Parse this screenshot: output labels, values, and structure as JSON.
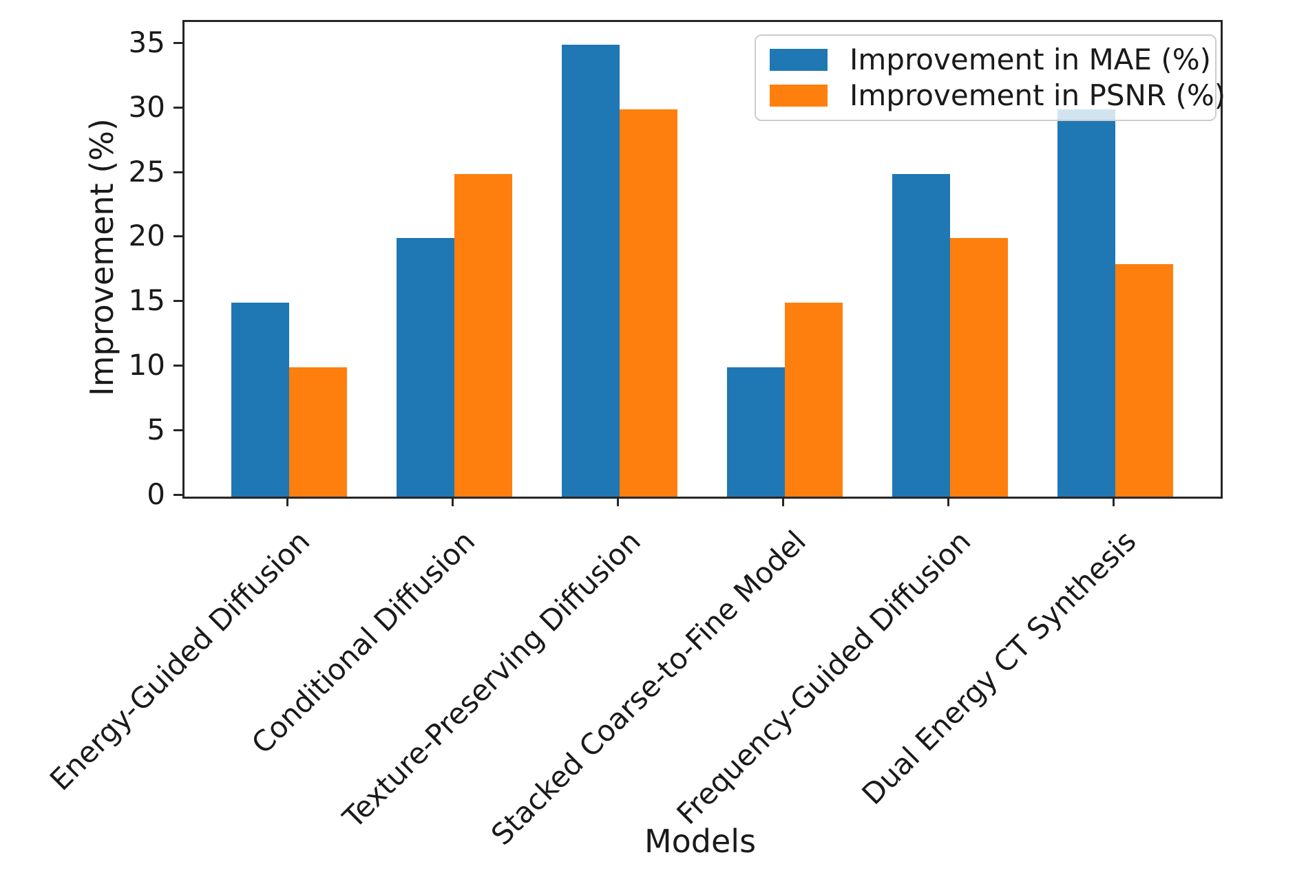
{
  "chart_data": {
    "type": "bar",
    "title": "",
    "xlabel": "Models",
    "ylabel": "Improvement (%)",
    "categories": [
      "Energy-Guided Diffusion",
      "Conditional Diffusion",
      "Texture-Preserving Diffusion",
      "Stacked Coarse-to-Fine Model",
      "Frequency-Guided Diffusion",
      "Dual Energy CT Synthesis"
    ],
    "series": [
      {
        "name": "Improvement in MAE (%)",
        "color": "#1f77b4",
        "values": [
          15,
          20,
          35,
          10,
          25,
          30
        ]
      },
      {
        "name": "Improvement in PSNR (%)",
        "color": "#ff7f0e",
        "values": [
          10,
          25,
          30,
          15,
          20,
          18
        ]
      }
    ],
    "yticks": [
      0,
      5,
      10,
      15,
      20,
      25,
      30,
      35
    ],
    "ylim": [
      0,
      36.75
    ],
    "grid": false,
    "legend_position": "upper right",
    "bar_width_ratio": 0.35,
    "x_tick_label_rotation_deg": 45,
    "colors": {
      "spine": "#262626",
      "text": "#1a1a1a",
      "background": "#ffffff"
    }
  }
}
